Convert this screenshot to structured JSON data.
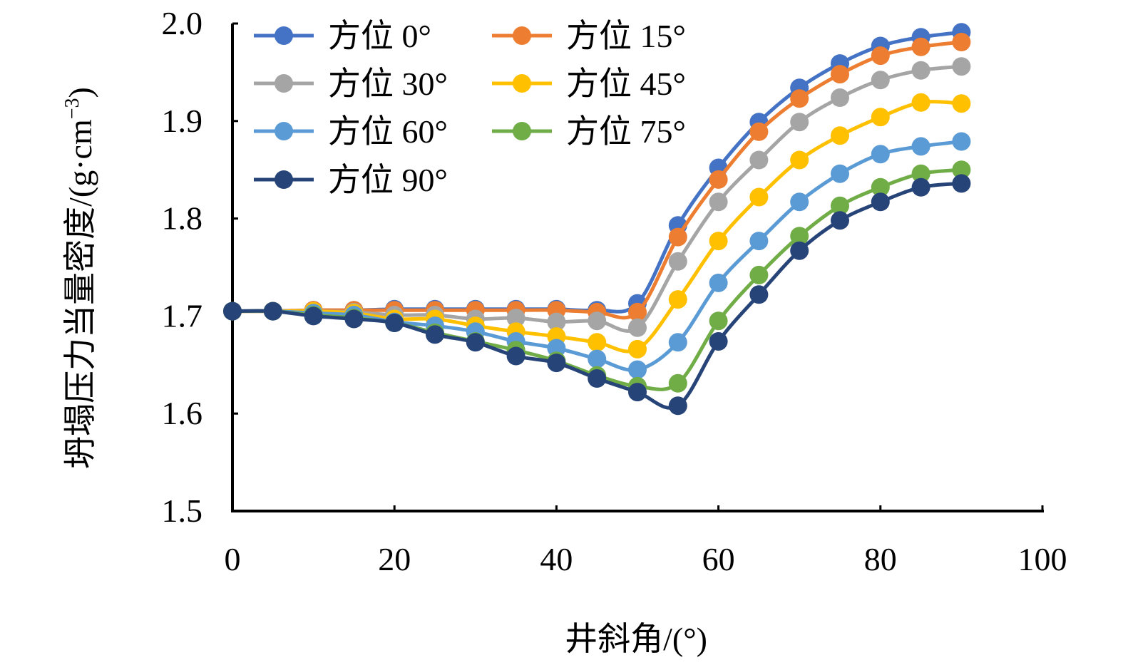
{
  "chart_data": {
    "type": "line",
    "title": "",
    "xlabel": "井斜角/(°)",
    "ylabel_main": "坍塌压力当量密度/(g·cm",
    "ylabel_sup": "−3",
    "ylabel_close": ")",
    "xlim": [
      0,
      100
    ],
    "ylim": [
      1.5,
      2.0
    ],
    "x_ticks": [
      0,
      20,
      40,
      60,
      80,
      100
    ],
    "x_tick_labels": [
      "0",
      "20",
      "40",
      "60",
      "80",
      "100"
    ],
    "y_ticks": [
      1.5,
      1.6,
      1.7,
      1.8,
      1.9,
      2.0
    ],
    "y_tick_labels": [
      "1.5",
      "1.6",
      "1.7",
      "1.8",
      "1.9",
      "2.0"
    ],
    "grid": false,
    "legend_position": "top-left",
    "x": [
      0,
      5,
      10,
      15,
      20,
      25,
      30,
      35,
      40,
      45,
      50,
      55,
      60,
      65,
      70,
      75,
      80,
      85,
      90
    ],
    "series": [
      {
        "name": "方位 0°",
        "color": "#4472C4",
        "values": [
          1.705,
          1.705,
          1.706,
          1.706,
          1.707,
          1.707,
          1.707,
          1.707,
          1.707,
          1.706,
          1.713,
          1.793,
          1.852,
          1.899,
          1.934,
          1.959,
          1.977,
          1.986,
          1.991
        ]
      },
      {
        "name": "方位 15°",
        "color": "#ED7D31",
        "values": [
          1.705,
          1.705,
          1.706,
          1.706,
          1.706,
          1.706,
          1.706,
          1.706,
          1.706,
          1.704,
          1.704,
          1.781,
          1.84,
          1.889,
          1.923,
          1.948,
          1.967,
          1.976,
          1.981
        ]
      },
      {
        "name": "方位 30°",
        "color": "#A5A5A5",
        "values": [
          1.705,
          1.705,
          1.705,
          1.704,
          1.701,
          1.701,
          1.697,
          1.698,
          1.694,
          1.695,
          1.688,
          1.756,
          1.817,
          1.86,
          1.899,
          1.924,
          1.942,
          1.952,
          1.956
        ]
      },
      {
        "name": "方位 45°",
        "color": "#FFC000",
        "values": [
          1.705,
          1.705,
          1.705,
          1.703,
          1.697,
          1.697,
          1.69,
          1.684,
          1.679,
          1.673,
          1.666,
          1.717,
          1.777,
          1.822,
          1.86,
          1.885,
          1.904,
          1.919,
          1.918
        ]
      },
      {
        "name": "方位 60°",
        "color": "#5B9BD5",
        "values": [
          1.705,
          1.705,
          1.703,
          1.701,
          1.694,
          1.69,
          1.684,
          1.674,
          1.667,
          1.656,
          1.645,
          1.673,
          1.734,
          1.777,
          1.817,
          1.846,
          1.866,
          1.874,
          1.879
        ]
      },
      {
        "name": "方位 75°",
        "color": "#70AD47",
        "values": [
          1.705,
          1.705,
          1.701,
          1.698,
          1.693,
          1.683,
          1.674,
          1.665,
          1.654,
          1.639,
          1.628,
          1.631,
          1.695,
          1.742,
          1.782,
          1.813,
          1.832,
          1.846,
          1.85
        ]
      },
      {
        "name": "方位 90°",
        "color": "#264478",
        "values": [
          1.705,
          1.705,
          1.7,
          1.697,
          1.693,
          1.681,
          1.673,
          1.659,
          1.652,
          1.636,
          1.622,
          1.608,
          1.674,
          1.722,
          1.767,
          1.798,
          1.817,
          1.832,
          1.836
        ]
      }
    ]
  }
}
